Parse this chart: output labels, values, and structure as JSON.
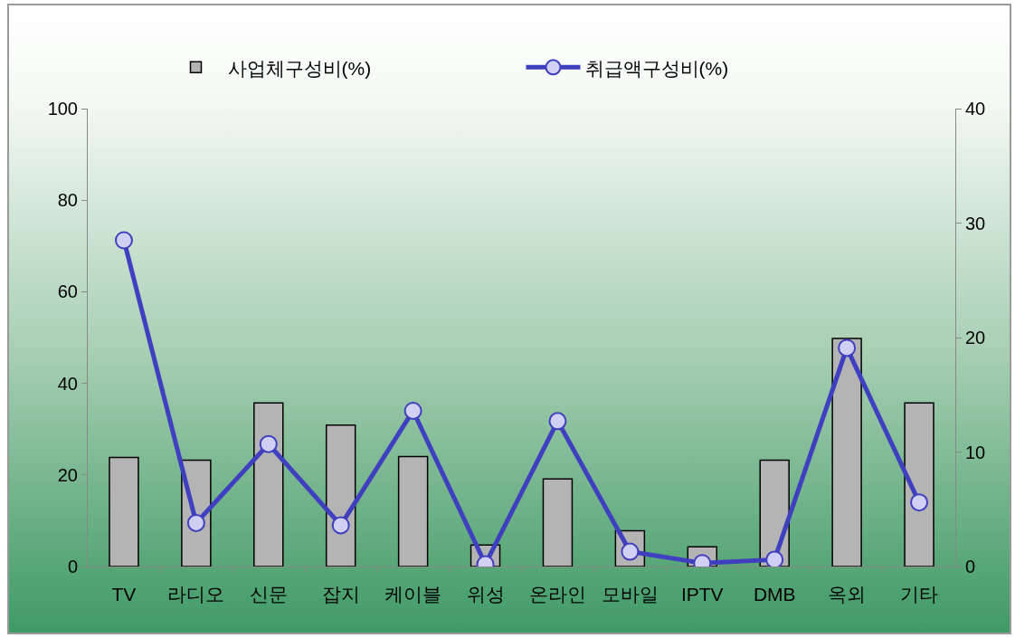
{
  "chart_data": {
    "type": "bar",
    "categories": [
      "TV",
      "라디오",
      "신문",
      "잡지",
      "케이블",
      "위성",
      "온라인",
      "모바일",
      "IPTV",
      "DMB",
      "옥외",
      "기타"
    ],
    "series": [
      {
        "name": "사업체구성비(%)",
        "color": "#b4b4b4",
        "values": [
          23.8,
          23.2,
          35.7,
          30.9,
          24.0,
          4.7,
          19.1,
          7.8,
          4.3,
          23.2,
          49.8,
          35.7
        ]
      },
      {
        "name": "취급액구성비(%)",
        "type": "line",
        "axis": "y2",
        "color": "#3f3fbf",
        "values": [
          28.5,
          3.8,
          10.7,
          3.6,
          13.6,
          0.2,
          12.7,
          1.3,
          0.3,
          0.6,
          19.1,
          5.6
        ]
      }
    ],
    "ylim": [
      0,
      100
    ],
    "yticks": [
      0,
      20,
      40,
      60,
      80,
      100
    ],
    "y2lim": [
      0,
      40
    ],
    "y2ticks": [
      0,
      10,
      20,
      30,
      40
    ],
    "grid": false,
    "legend": "top",
    "marker": "circle",
    "line_style": "solid"
  }
}
